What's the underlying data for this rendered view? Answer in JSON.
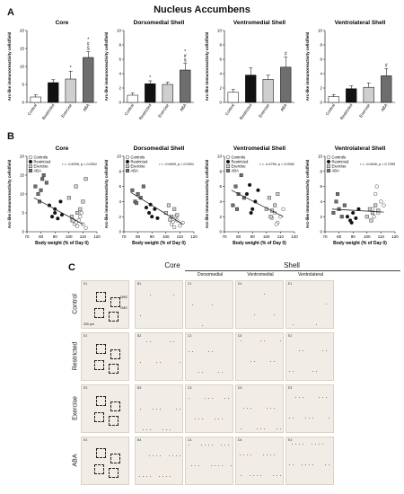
{
  "figure_title": "Nucleus Accumbens",
  "panel_labels": {
    "A": "A",
    "B": "B",
    "C": "C"
  },
  "colors": {
    "control": "#ffffff",
    "restricted": "#111111",
    "exercise": "#cfcfcf",
    "aba": "#6e6e6e",
    "tissue": "#f1ede6"
  },
  "chart_data": [
    {
      "type": "bar",
      "panel": "A",
      "title": "Core",
      "categories": [
        "Control",
        "Restricted",
        "Exercise",
        "ABA"
      ],
      "values": [
        1.5,
        5.5,
        6.5,
        12.5
      ],
      "errors": [
        0.6,
        0.8,
        2.2,
        1.6
      ],
      "annotations": [
        "",
        "",
        "*",
        "*\n#\n§"
      ],
      "ylabel": "Arc-like immunoreactivity cells/field",
      "ylim": [
        0,
        20
      ],
      "yticks": [
        0,
        5,
        10,
        15,
        20
      ]
    },
    {
      "type": "bar",
      "panel": "A",
      "title": "Dorsomedial Shell",
      "categories": [
        "Control",
        "Restricted",
        "Exercise",
        "ABA"
      ],
      "values": [
        1.0,
        2.6,
        2.5,
        4.5
      ],
      "errors": [
        0.3,
        0.4,
        0.3,
        0.9
      ],
      "annotations": [
        "",
        "*",
        "",
        "*\n#\n§"
      ],
      "ylabel": "Arc-like immunoreactivity cells/field",
      "ylim": [
        0,
        10
      ],
      "yticks": [
        0,
        2,
        4,
        6,
        8,
        10
      ]
    },
    {
      "type": "bar",
      "panel": "A",
      "title": "Ventromedial Shell",
      "categories": [
        "Control",
        "Restricted",
        "Exercise",
        "ABA"
      ],
      "values": [
        1.4,
        3.8,
        3.2,
        4.9
      ],
      "errors": [
        0.4,
        1.0,
        0.6,
        1.4
      ],
      "annotations": [
        "",
        "",
        "",
        "#"
      ],
      "ylabel": "Arc-like immunoreactivity cells/field",
      "ylim": [
        0,
        10
      ],
      "yticks": [
        0,
        2,
        4,
        6,
        8,
        10
      ]
    },
    {
      "type": "bar",
      "panel": "A",
      "title": "Ventrolateral Shell",
      "categories": [
        "Control",
        "Restricted",
        "Exercise",
        "ABA"
      ],
      "values": [
        0.8,
        1.9,
        2.1,
        3.7
      ],
      "errors": [
        0.3,
        0.4,
        0.6,
        1.0
      ],
      "annotations": [
        "",
        "",
        "",
        "#"
      ],
      "ylabel": "Arc-like immunoreactivity cells/field",
      "ylim": [
        0,
        10
      ],
      "yticks": [
        0,
        2,
        4,
        6,
        8,
        10
      ]
    },
    {
      "type": "scatter",
      "panel": "B",
      "title": "Core",
      "stat": "r = -0.6006, p < 0.0001",
      "xlabel": "Body weight (% of Day 0)",
      "ylabel": "Arc-like immunoreactivity cells/field",
      "xlim": [
        70,
        120
      ],
      "xticks": [
        70,
        80,
        90,
        100,
        110,
        120
      ],
      "ylim": [
        0,
        20
      ],
      "yticks": [
        0,
        5,
        10,
        15,
        20
      ],
      "legend": [
        "Controls",
        "Restricted",
        "Exercise",
        "ABA"
      ],
      "legend_position": "top-left",
      "fit": {
        "x": [
          75,
          110
        ],
        "y": [
          9.0,
          2.0
        ]
      },
      "series": [
        {
          "name": "Controls",
          "points": [
            [
              102,
              3
            ],
            [
              104,
              2
            ],
            [
              106,
              1.5
            ],
            [
              108,
              4
            ],
            [
              110,
              2
            ],
            [
              112,
              1
            ],
            [
              107,
              3
            ],
            [
              109,
              5
            ],
            [
              105,
              2.5
            ]
          ]
        },
        {
          "name": "Restricted",
          "points": [
            [
              86,
              7
            ],
            [
              88,
              4
            ],
            [
              90,
              5
            ],
            [
              92,
              3.5
            ],
            [
              94,
              8
            ],
            [
              90,
              6
            ],
            [
              95,
              4.5
            ]
          ]
        },
        {
          "name": "Exercise",
          "points": [
            [
              100,
              9
            ],
            [
              103,
              3
            ],
            [
              105,
              12
            ],
            [
              108,
              6
            ],
            [
              110,
              8
            ],
            [
              112,
              14
            ],
            [
              106,
              5
            ],
            [
              102,
              4
            ]
          ]
        },
        {
          "name": "ABA",
          "points": [
            [
              76,
              12
            ],
            [
              78,
              10
            ],
            [
              80,
              11
            ],
            [
              82,
              15
            ],
            [
              84,
              13
            ],
            [
              79,
              8
            ],
            [
              81,
              14
            ]
          ]
        }
      ]
    },
    {
      "type": "scatter",
      "panel": "B",
      "title": "Dorsomedial Shell",
      "stat": "r = -0.6905, p < 0.0001",
      "xlabel": "Body weight (% of Day 0)",
      "ylabel": "Arc-like immunoreactivity cells/field",
      "xlim": [
        70,
        120
      ],
      "xticks": [
        70,
        80,
        90,
        100,
        110,
        120
      ],
      "ylim": [
        0,
        10
      ],
      "yticks": [
        0,
        2,
        4,
        6,
        8,
        10
      ],
      "legend": [
        "Controls",
        "Restricted",
        "Exercise",
        "ABA"
      ],
      "legend_position": "top-left",
      "fit": {
        "x": [
          75,
          112
        ],
        "y": [
          5.2,
          1.0
        ]
      },
      "series": [
        {
          "name": "Controls",
          "points": [
            [
              104,
              1.0
            ],
            [
              106,
              0.6
            ],
            [
              108,
              1.5
            ],
            [
              110,
              0.8
            ],
            [
              112,
              1.2
            ],
            [
              107,
              2.0
            ],
            [
              105,
              1.3
            ]
          ]
        },
        {
          "name": "Restricted",
          "points": [
            [
              86,
              3.2
            ],
            [
              88,
              2.5
            ],
            [
              90,
              2.0
            ],
            [
              92,
              3.0
            ],
            [
              94,
              1.8
            ],
            [
              89,
              3.6
            ]
          ]
        },
        {
          "name": "Exercise",
          "points": [
            [
              100,
              2.5
            ],
            [
              102,
              3.5
            ],
            [
              104,
              2.0
            ],
            [
              106,
              3.0
            ],
            [
              108,
              2.2
            ],
            [
              103,
              1.6
            ]
          ]
        },
        {
          "name": "ABA",
          "points": [
            [
              76,
              5.5
            ],
            [
              78,
              4.0
            ],
            [
              80,
              5.0
            ],
            [
              82,
              4.5
            ],
            [
              84,
              6.0
            ],
            [
              79,
              3.8
            ]
          ]
        }
      ]
    },
    {
      "type": "scatter",
      "panel": "B",
      "title": "Ventromedial Shell",
      "stat": "r = -0.4760, p = 0.0062",
      "xlabel": "Body weight (% of Day 0)",
      "ylabel": "Arc-like immunoreactivity cells/field",
      "xlim": [
        70,
        120
      ],
      "xticks": [
        70,
        80,
        90,
        100,
        110,
        120
      ],
      "ylim": [
        0,
        10
      ],
      "yticks": [
        0,
        2,
        4,
        6,
        8,
        10
      ],
      "legend": [
        "Controls",
        "Restricted",
        "Exercise",
        "ABA"
      ],
      "legend_position": "top-left",
      "fit": {
        "x": [
          75,
          112
        ],
        "y": [
          5.5,
          2.0
        ]
      },
      "series": [
        {
          "name": "Controls",
          "points": [
            [
              104,
              1.8
            ],
            [
              106,
              2.5
            ],
            [
              108,
              1.2
            ],
            [
              110,
              2.0
            ],
            [
              112,
              3.0
            ],
            [
              107,
              1.0
            ]
          ]
        },
        {
          "name": "Restricted",
          "points": [
            [
              86,
              5.0
            ],
            [
              88,
              6.2
            ],
            [
              90,
              3.0
            ],
            [
              92,
              4.0
            ],
            [
              94,
              5.5
            ],
            [
              89,
              2.5
            ]
          ]
        },
        {
          "name": "Exercise",
          "points": [
            [
              100,
              3.0
            ],
            [
              102,
              4.5
            ],
            [
              104,
              2.8
            ],
            [
              106,
              3.5
            ],
            [
              108,
              5.0
            ],
            [
              103,
              2.0
            ]
          ]
        },
        {
          "name": "ABA",
          "points": [
            [
              76,
              3.5
            ],
            [
              78,
              6.0
            ],
            [
              80,
              5.0
            ],
            [
              82,
              7.5
            ],
            [
              84,
              4.5
            ],
            [
              79,
              3.0
            ]
          ]
        }
      ]
    },
    {
      "type": "scatter",
      "panel": "B",
      "title": "Ventrolateral Shell",
      "stat": "r = -0.0646, p = 0.7289",
      "xlabel": "Body weight (% of Day 0)",
      "ylabel": "Arc-like immunoreactivity cells/field",
      "xlim": [
        70,
        120
      ],
      "xticks": [
        70,
        80,
        90,
        100,
        110,
        120
      ],
      "ylim": [
        0,
        10
      ],
      "yticks": [
        0,
        2,
        4,
        6,
        8,
        10
      ],
      "legend": [
        "Controls",
        "Restricted",
        "Exercise",
        "ABA"
      ],
      "legend_position": "top-left",
      "fit": {
        "x": [
          75,
          112
        ],
        "y": [
          3.0,
          2.6
        ]
      },
      "series": [
        {
          "name": "Controls",
          "points": [
            [
              104,
              3.0
            ],
            [
              106,
              5.0
            ],
            [
              108,
              2.5
            ],
            [
              110,
              4.0
            ],
            [
              112,
              3.5
            ],
            [
              107,
              6.0
            ],
            [
              105,
              2.0
            ]
          ]
        },
        {
          "name": "Restricted",
          "points": [
            [
              86,
              2.0
            ],
            [
              88,
              1.5
            ],
            [
              90,
              2.5
            ],
            [
              92,
              1.8
            ],
            [
              94,
              3.0
            ],
            [
              89,
              1.2
            ]
          ]
        },
        {
          "name": "Exercise",
          "points": [
            [
              100,
              2.0
            ],
            [
              102,
              3.0
            ],
            [
              104,
              2.5
            ],
            [
              106,
              3.5
            ],
            [
              108,
              2.8
            ],
            [
              103,
              1.5
            ]
          ]
        },
        {
          "name": "ABA",
          "points": [
            [
              76,
              2.5
            ],
            [
              78,
              4.0
            ],
            [
              80,
              3.0
            ],
            [
              82,
              2.0
            ],
            [
              84,
              3.5
            ],
            [
              79,
              5.0
            ]
          ]
        }
      ]
    }
  ],
  "micrographs": {
    "column_headers": {
      "core": "Core",
      "shell": "Shell",
      "dorsomedial": "Dorsomedial",
      "ventromedial": "Ventromedial",
      "ventrolateral": "Ventrolateral"
    },
    "row_labels": [
      "Control",
      "Restricted",
      "Exercise",
      "ABA"
    ],
    "scale_bar": "200 µm",
    "overview_labels": [
      "DMS",
      "VMS"
    ],
    "tiles": [
      [
        "E1",
        "B1",
        "C1",
        "D1",
        "E1"
      ],
      [
        "E2",
        "B2",
        "C2",
        "D2",
        "E2"
      ],
      [
        "E3",
        "B3",
        "C3",
        "D3",
        "E3"
      ],
      [
        "E4",
        "B4",
        "C4",
        "D4",
        "E4"
      ]
    ]
  }
}
